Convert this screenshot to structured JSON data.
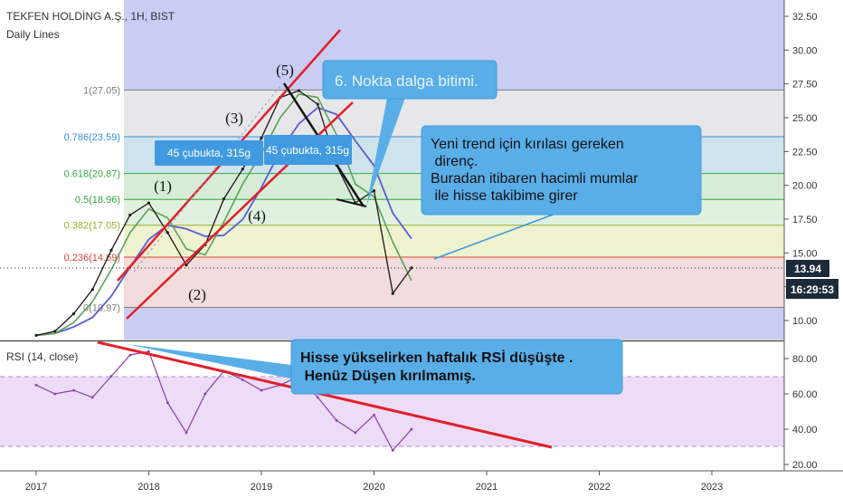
{
  "header": {
    "symbol": "TEKFEN HOLDİNG A.Ş., 1H, BIST",
    "indicator": "Daily Lines"
  },
  "colors": {
    "price": "#1f1f1f",
    "ma_fast": "#d64545",
    "ma_mid": "#5aa35a",
    "ma_slow": "#5b5bd6",
    "trend_line": "#e0202a",
    "rsi_line": "#8e3ea8",
    "callout_bg": "#5aaee8",
    "price_badge": "#1c2a39"
  },
  "price_axis": {
    "ticks": [
      "32.50",
      "30.00",
      "27.50",
      "25.00",
      "22.50",
      "20.00",
      "17.50",
      "15.00",
      "12.50",
      "10.00"
    ],
    "current_price": "13.94",
    "countdown": "16:29:53"
  },
  "rsi_panel": {
    "label": "RSI (14, close)",
    "ticks": [
      "80.00",
      "60.00",
      "40.00",
      "20.00"
    ]
  },
  "time_axis": {
    "labels": [
      "2017",
      "2018",
      "2019",
      "2020",
      "2021",
      "2022",
      "2023"
    ]
  },
  "fib_levels": [
    {
      "label": "1(27.05)",
      "price": 27.05,
      "color": "#7d7d7d"
    },
    {
      "label": "0.786(23.59)",
      "price": 23.59,
      "color": "#3d8fd6"
    },
    {
      "label": "0.618(20.87)",
      "price": 20.87,
      "color": "#36a84a"
    },
    {
      "label": "0.5(18.96)",
      "price": 18.96,
      "color": "#2ea836"
    },
    {
      "label": "0.382(17.05)",
      "price": 17.05,
      "color": "#9bb22a"
    },
    {
      "label": "0.236(14.69)",
      "price": 14.69,
      "color": "#e2443c"
    },
    {
      "label": "0(10.97)",
      "price": 10.97,
      "color": "#7d7d7d"
    }
  ],
  "wave_labels": [
    "(1)",
    "(2)",
    "(3)",
    "(4)",
    "(5)"
  ],
  "bar_count_labels": [
    "45 çubukta, 315g",
    "45 çubukta, 315g"
  ],
  "callouts": {
    "wave_end": "6. Nokta dalga bitimi.",
    "trend": [
      "Yeni trend için kırılası gereken",
      " direnç.",
      "Buradan itibaren hacimli mumlar",
      " ile hisse takibime girer"
    ],
    "rsi": [
      "Hisse yükselirken haftalık RSİ düşüşte .",
      " Henüz Düşen kırılmamış."
    ]
  },
  "chart_data": {
    "type": "line",
    "title": "TEKFEN HOLDİNG A.Ş., 1H, BIST",
    "xlabel": "",
    "ylabel": "",
    "ylim": [
      8.8,
      33.5
    ],
    "x": [
      "2017-01",
      "2017-03",
      "2017-05",
      "2017-07",
      "2017-09",
      "2017-11",
      "2018-01",
      "2018-03",
      "2018-05",
      "2018-07",
      "2018-09",
      "2018-11",
      "2019-01",
      "2019-03",
      "2019-05",
      "2019-07",
      "2019-09",
      "2019-11",
      "2020-01",
      "2020-03",
      "2020-05"
    ],
    "series": [
      {
        "values": [
          8.9,
          9.2,
          10.5,
          12.3,
          15.2,
          17.8,
          18.7,
          16.5,
          14.1,
          15.6,
          19.0,
          21.2,
          23.5,
          26.5,
          27.0,
          26.0,
          21.5,
          18.7,
          19.6,
          12.0,
          13.9
        ]
      }
    ],
    "rsi": {
      "ylim": [
        20,
        90
      ],
      "overbought": 70,
      "oversold": 30,
      "values": [
        65,
        60,
        62,
        58,
        70,
        82,
        84,
        55,
        38,
        60,
        73,
        68,
        62,
        65,
        70,
        58,
        45,
        38,
        48,
        28,
        40
      ]
    }
  }
}
